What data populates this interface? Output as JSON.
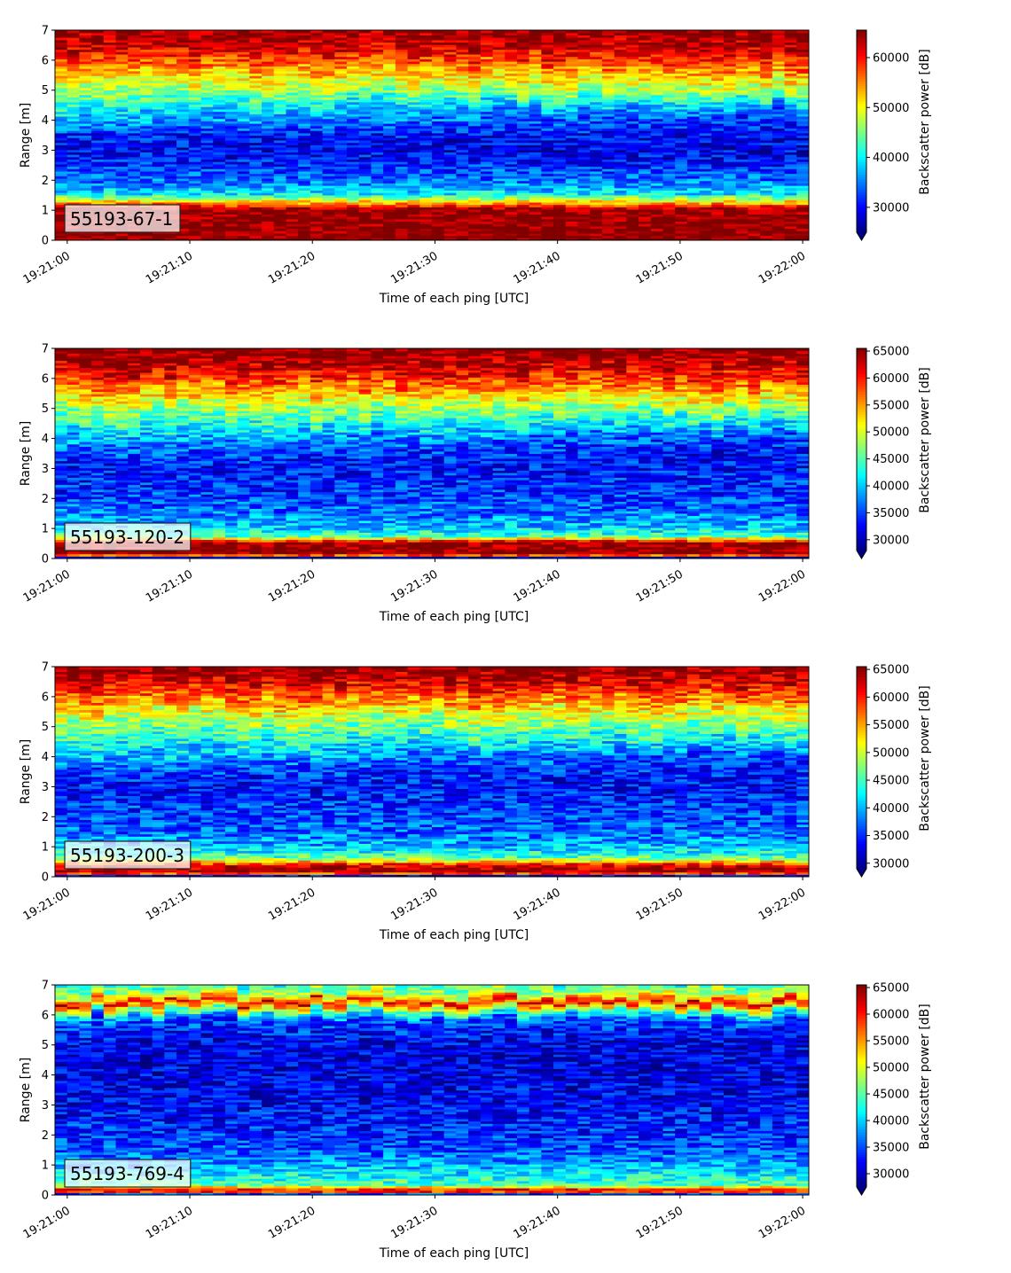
{
  "colormap": "jet",
  "chart_data": [
    {
      "type": "heatmap",
      "label": "55193-67-1",
      "xlabel": "Time of each ping [UTC]",
      "ylabel": "Range [m]",
      "xticks": [
        "19:21:00",
        "19:21:10",
        "19:21:20",
        "19:21:30",
        "19:21:40",
        "19:21:50",
        "19:22:00"
      ],
      "yticks": [
        0,
        1,
        2,
        3,
        4,
        5,
        6,
        7
      ],
      "xlim_seconds": [
        -1,
        60.5
      ],
      "ylim": [
        0,
        7
      ],
      "colorbar_label": "Backscatter power [dB]",
      "colorbar_ticks": [
        30000,
        40000,
        50000,
        60000
      ],
      "clim": [
        25000,
        65500
      ],
      "profile": {
        "range_m": [
          0.0,
          0.25,
          1.0,
          1.25,
          1.5,
          1.8,
          2.0,
          2.3,
          2.6,
          3.0,
          3.5,
          3.8,
          4.2,
          4.6,
          5.0,
          5.5,
          6.0,
          6.4,
          6.8,
          7.0
        ],
        "early_power": [
          65500,
          65500,
          65000,
          52000,
          40000,
          36000,
          34000,
          33000,
          31000,
          29500,
          31000,
          36000,
          39000,
          43000,
          47000,
          52000,
          58000,
          62000,
          64000,
          65000
        ],
        "late_power": [
          65500,
          65500,
          65000,
          52000,
          40000,
          36000,
          34000,
          33000,
          30000,
          29000,
          30000,
          31000,
          33000,
          39000,
          47000,
          53000,
          59000,
          63000,
          64500,
          65000
        ]
      }
    },
    {
      "type": "heatmap",
      "label": "55193-120-2",
      "xlabel": "Time of each ping [UTC]",
      "ylabel": "Range [m]",
      "xticks": [
        "19:21:00",
        "19:21:10",
        "19:21:20",
        "19:21:30",
        "19:21:40",
        "19:21:50",
        "19:22:00"
      ],
      "yticks": [
        0,
        1,
        2,
        3,
        4,
        5,
        6,
        7
      ],
      "xlim_seconds": [
        -1,
        60.5
      ],
      "ylim": [
        0,
        7
      ],
      "colorbar_label": "Backscatter power [dB]",
      "colorbar_ticks": [
        30000,
        35000,
        40000,
        45000,
        50000,
        55000,
        60000,
        65000
      ],
      "clim": [
        28000,
        65500
      ],
      "profile": {
        "range_m": [
          0.0,
          0.1,
          0.5,
          0.7,
          1.0,
          1.5,
          2.0,
          2.5,
          3.0,
          3.5,
          4.0,
          4.5,
          5.0,
          5.5,
          6.0,
          6.5,
          7.0
        ],
        "early_power": [
          30000,
          65500,
          65000,
          45000,
          40000,
          37000,
          35000,
          34000,
          33000,
          36000,
          40000,
          44000,
          48000,
          54000,
          60000,
          64000,
          65500
        ],
        "late_power": [
          30000,
          65500,
          65000,
          45000,
          40000,
          37000,
          35000,
          34000,
          33000,
          33000,
          35000,
          42000,
          48000,
          54000,
          60000,
          64000,
          65500
        ]
      }
    },
    {
      "type": "heatmap",
      "label": "55193-200-3",
      "xlabel": "Time of each ping [UTC]",
      "ylabel": "Range [m]",
      "xticks": [
        "19:21:00",
        "19:21:10",
        "19:21:20",
        "19:21:30",
        "19:21:40",
        "19:21:50",
        "19:22:00"
      ],
      "yticks": [
        0,
        1,
        2,
        3,
        4,
        5,
        6,
        7
      ],
      "xlim_seconds": [
        -1,
        60.5
      ],
      "ylim": [
        0,
        7
      ],
      "colorbar_label": "Backscatter power [dB]",
      "colorbar_ticks": [
        30000,
        35000,
        40000,
        45000,
        50000,
        55000,
        60000,
        65000
      ],
      "clim": [
        29000,
        65500
      ],
      "profile": {
        "range_m": [
          0.0,
          0.1,
          0.35,
          0.6,
          1.0,
          1.5,
          2.0,
          2.5,
          3.0,
          3.5,
          4.0,
          4.5,
          5.0,
          5.5,
          6.0,
          6.5,
          7.0
        ],
        "early_power": [
          33000,
          65500,
          62000,
          46000,
          40000,
          37000,
          36000,
          35000,
          34000,
          36000,
          41000,
          44000,
          47000,
          52000,
          58000,
          63000,
          65500
        ],
        "late_power": [
          33000,
          65500,
          62000,
          46000,
          40000,
          37000,
          36000,
          35000,
          34000,
          34000,
          36000,
          42000,
          47000,
          52000,
          58000,
          63000,
          65500
        ]
      }
    },
    {
      "type": "heatmap",
      "label": "55193-769-4",
      "xlabel": "Time of each ping [UTC]",
      "ylabel": "Range [m]",
      "xticks": [
        "19:21:00",
        "19:21:10",
        "19:21:20",
        "19:21:30",
        "19:21:40",
        "19:21:50",
        "19:22:00"
      ],
      "yticks": [
        0,
        1,
        2,
        3,
        4,
        5,
        6,
        7
      ],
      "xlim_seconds": [
        -1,
        60.5
      ],
      "ylim": [
        0,
        7
      ],
      "colorbar_label": "Backscatter power [dB]",
      "colorbar_ticks": [
        30000,
        35000,
        40000,
        45000,
        50000,
        55000,
        60000,
        65000
      ],
      "clim": [
        27500,
        65500
      ],
      "profile": {
        "range_m": [
          0.0,
          0.1,
          0.3,
          0.6,
          1.0,
          1.5,
          2.0,
          3.0,
          4.0,
          5.0,
          5.8,
          6.1,
          6.4,
          6.6,
          7.0
        ],
        "early_power": [
          35000,
          65500,
          45000,
          42000,
          38000,
          35000,
          34000,
          32000,
          31000,
          31000,
          35000,
          45000,
          62000,
          50000,
          44000
        ],
        "late_power": [
          35000,
          65500,
          45000,
          42000,
          38000,
          35000,
          34000,
          32000,
          31000,
          31000,
          35000,
          45000,
          62000,
          50000,
          44000
        ]
      }
    }
  ]
}
